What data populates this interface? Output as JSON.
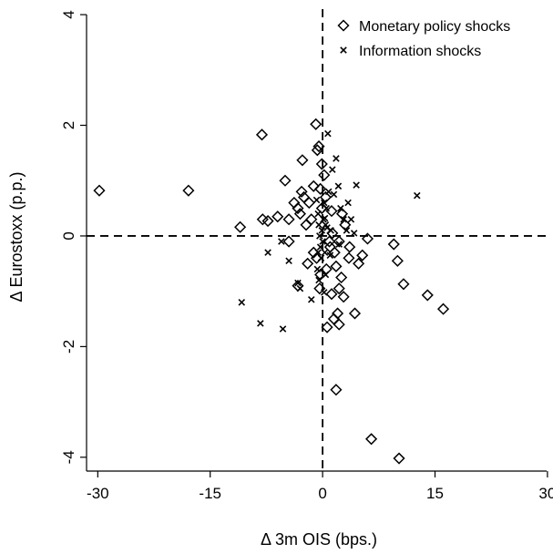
{
  "chart_data": {
    "type": "scatter",
    "title": "",
    "xlabel": "Δ 3m OIS (bps.)",
    "ylabel": "Δ Eurostoxx (p.p.)",
    "xlim": [
      -31.5,
      30.5
    ],
    "ylim": [
      -4.25,
      4.1
    ],
    "x_ticks": [
      -30,
      -15,
      0,
      15,
      30
    ],
    "y_ticks": [
      -4,
      -2,
      0,
      2,
      4
    ],
    "x_tick_labels": [
      "-30",
      "-15",
      "0",
      "15",
      "30"
    ],
    "y_tick_labels": [
      "-4",
      "-2",
      "0",
      "2",
      "4"
    ],
    "reference_lines": {
      "x": 0,
      "y": 0,
      "style": "dashed"
    },
    "grid": false,
    "legend_position": "top-right",
    "series": [
      {
        "name": "Monetary policy shocks",
        "marker": "diamond",
        "color": "#000000",
        "points": [
          [
            -29.8,
            0.82
          ],
          [
            -17.9,
            0.82
          ],
          [
            -8.1,
            1.83
          ],
          [
            -11,
            0.16
          ],
          [
            -8,
            0.3
          ],
          [
            -7.3,
            0.27
          ],
          [
            -6,
            0.35
          ],
          [
            -5,
            1.0
          ],
          [
            -4.5,
            0.3
          ],
          [
            -3.8,
            0.6
          ],
          [
            -3.3,
            0.5
          ],
          [
            -3,
            0.4
          ],
          [
            -2.8,
            0.8
          ],
          [
            -2.5,
            0.7
          ],
          [
            -2.2,
            0.2
          ],
          [
            -2.7,
            1.37
          ],
          [
            -1.8,
            0.6
          ],
          [
            -1.5,
            0.3
          ],
          [
            -1.2,
            0.9
          ],
          [
            -0.9,
            2.02
          ],
          [
            -0.7,
            1.55
          ],
          [
            -0.5,
            1.62
          ],
          [
            -0.3,
            0.85
          ],
          [
            -0.1,
            0.5
          ],
          [
            -0.1,
            1.3
          ],
          [
            0.2,
            1.1
          ],
          [
            0.4,
            0.7
          ],
          [
            -4.5,
            -0.1
          ],
          [
            -2,
            -0.5
          ],
          [
            -1.2,
            -0.3
          ],
          [
            -0.8,
            -0.4
          ],
          [
            -3.3,
            -0.9
          ],
          [
            -0.4,
            -0.95
          ],
          [
            -0.3,
            -0.7
          ],
          [
            0.5,
            -0.6
          ],
          [
            1.0,
            -0.2
          ],
          [
            1.3,
            0.05
          ],
          [
            1.6,
            -0.3
          ],
          [
            1.8,
            -0.55
          ],
          [
            1.2,
            -1.05
          ],
          [
            1.5,
            -1.5
          ],
          [
            2.0,
            -1.4
          ],
          [
            2.2,
            -0.95
          ],
          [
            0.6,
            -1.65
          ],
          [
            2.2,
            -1.6
          ],
          [
            2.8,
            -1.1
          ],
          [
            2.5,
            -0.75
          ],
          [
            3.5,
            -0.4
          ],
          [
            4.3,
            -1.4
          ],
          [
            4.8,
            -0.5
          ],
          [
            5.3,
            -0.35
          ],
          [
            6.0,
            -0.05
          ],
          [
            9.5,
            -0.15
          ],
          [
            10.0,
            -0.45
          ],
          [
            10.8,
            -0.87
          ],
          [
            14.0,
            -1.07
          ],
          [
            16.1,
            -1.32
          ],
          [
            1.8,
            -2.78
          ],
          [
            6.5,
            -3.67
          ],
          [
            10.2,
            -4.02
          ],
          [
            3.0,
            0.2
          ],
          [
            2.6,
            0.4
          ],
          [
            1.2,
            0.45
          ],
          [
            0.9,
            -0.1
          ],
          [
            3.6,
            -0.2
          ],
          [
            2.2,
            -0.1
          ]
        ]
      },
      {
        "name": "Information shocks",
        "marker": "cross",
        "color": "#000000",
        "points": [
          [
            12.6,
            0.73
          ],
          [
            0.7,
            1.85
          ],
          [
            1.3,
            1.2
          ],
          [
            1.5,
            0.75
          ],
          [
            1.8,
            1.4
          ],
          [
            2.1,
            0.9
          ],
          [
            2.4,
            0.5
          ],
          [
            2.8,
            0.3
          ],
          [
            3.2,
            0.1
          ],
          [
            3.8,
            0.3
          ],
          [
            3.4,
            0.6
          ],
          [
            4.5,
            0.92
          ],
          [
            4.2,
            0.05
          ],
          [
            2.2,
            -0.15
          ],
          [
            -5.5,
            -0.1
          ],
          [
            -7.3,
            -0.3
          ],
          [
            -4.5,
            -0.45
          ],
          [
            -3.3,
            -0.85
          ],
          [
            -3.0,
            -0.95
          ],
          [
            -1.5,
            -1.15
          ],
          [
            -5.3,
            -1.68
          ],
          [
            -8.3,
            -1.58
          ],
          [
            -10.8,
            -1.2
          ],
          [
            -0.6,
            0.4
          ],
          [
            -0.5,
            0.2
          ],
          [
            -0.4,
            0.0
          ],
          [
            -0.3,
            -0.2
          ],
          [
            -0.2,
            -0.4
          ],
          [
            -0.1,
            0.1
          ],
          [
            0.0,
            -0.1
          ],
          [
            0.1,
            0.3
          ],
          [
            0.2,
            0.6
          ],
          [
            0.3,
            -0.3
          ],
          [
            0.4,
            0.2
          ],
          [
            0.5,
            0.5
          ],
          [
            0.6,
            0.15
          ],
          [
            -0.7,
            -0.6
          ],
          [
            -0.5,
            -0.8
          ],
          [
            0.4,
            -0.7
          ],
          [
            1.1,
            0.1
          ],
          [
            1.0,
            -0.35
          ],
          [
            0.8,
            0.8
          ],
          [
            -0.8,
            0.65
          ],
          [
            -0.6,
            -0.3
          ],
          [
            0.2,
            -1.02
          ],
          [
            0.3,
            0.32
          ]
        ]
      }
    ]
  }
}
